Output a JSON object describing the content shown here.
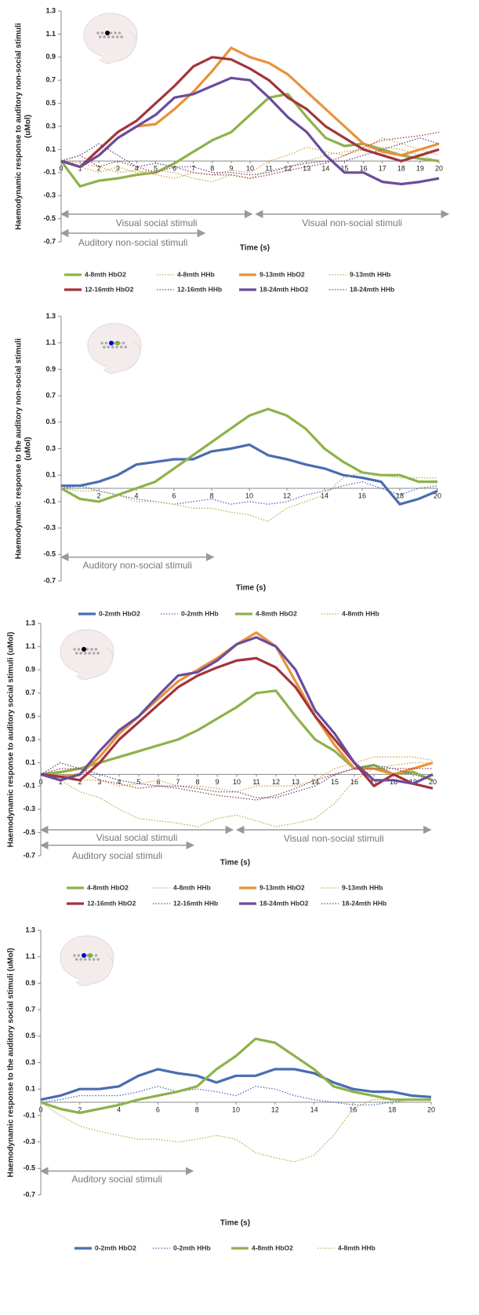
{
  "chart_data": [
    {
      "type": "line",
      "xlabel": "Time (s)",
      "ylabel": [
        "Haemodynamic response to auditory non-social stimuli",
        "(uMol)"
      ],
      "xlim": [
        0,
        20
      ],
      "xticks": [
        0,
        1,
        2,
        3,
        4,
        5,
        6,
        7,
        8,
        9,
        10,
        11,
        12,
        13,
        14,
        15,
        16,
        17,
        18,
        19,
        20
      ],
      "ylim": [
        -0.7,
        1.3
      ],
      "yticks": [
        -0.7,
        -0.5,
        -0.3,
        -0.1,
        0.1,
        0.3,
        0.5,
        0.7,
        0.9,
        1.1,
        1.3
      ],
      "annotations": [
        "Visual social stimuli",
        "Visual non-social stimuli",
        "Auditory non-social stimuli"
      ],
      "x": [
        0,
        1,
        2,
        3,
        4,
        5,
        6,
        7,
        8,
        9,
        10,
        11,
        12,
        13,
        14,
        15,
        16,
        17,
        18,
        19,
        20
      ],
      "series": [
        {
          "name": "4-8mth HbO2",
          "color": "#8db24a",
          "style": "solid",
          "values": [
            0,
            -0.22,
            -0.17,
            -0.15,
            -0.12,
            -0.1,
            -0.02,
            0.08,
            0.18,
            0.25,
            0.4,
            0.55,
            0.58,
            0.38,
            0.2,
            0.13,
            0.15,
            0.1,
            0.05,
            0.02,
            0
          ]
        },
        {
          "name": "4-8mth HHb",
          "color": "#b4b04e",
          "style": "dotted",
          "values": [
            0,
            -0.05,
            -0.1,
            -0.05,
            -0.1,
            -0.08,
            -0.1,
            -0.15,
            -0.18,
            -0.12,
            -0.15,
            -0.08,
            -0.05,
            0,
            0.05,
            0.08,
            0.1,
            0.12,
            0.1,
            0.05,
            0
          ]
        },
        {
          "name": "9-13mth HbO2",
          "color": "#e8923a",
          "style": "solid",
          "values": [
            0,
            -0.05,
            0.05,
            0.2,
            0.3,
            0.32,
            0.45,
            0.6,
            0.78,
            0.98,
            0.9,
            0.85,
            0.75,
            0.6,
            0.45,
            0.3,
            0.15,
            0.08,
            0.05,
            0.1,
            0.15
          ]
        },
        {
          "name": "9-13mth HHb",
          "color": "#d2a04c",
          "style": "dotted",
          "values": [
            0,
            -0.02,
            -0.05,
            -0.1,
            -0.08,
            -0.12,
            -0.15,
            -0.1,
            -0.12,
            -0.08,
            -0.1,
            0,
            0.05,
            0.12,
            0.08,
            0.05,
            0.1,
            0.2,
            0.15,
            0.1,
            0.05
          ]
        },
        {
          "name": "12-16mth HbO2",
          "color": "#a3343c",
          "style": "solid",
          "values": [
            0,
            -0.05,
            0.1,
            0.25,
            0.35,
            0.5,
            0.65,
            0.82,
            0.9,
            0.88,
            0.8,
            0.7,
            0.55,
            0.45,
            0.3,
            0.2,
            0.1,
            0.05,
            0,
            0.05,
            0.1
          ]
        },
        {
          "name": "12-16mth HHb",
          "color": "#9b3a4a",
          "style": "dotted",
          "values": [
            0,
            0.05,
            -0.05,
            0,
            -0.05,
            -0.1,
            -0.05,
            -0.1,
            -0.12,
            -0.12,
            -0.15,
            -0.12,
            -0.08,
            -0.05,
            -0.02,
            0.05,
            0.12,
            0.18,
            0.2,
            0.22,
            0.25
          ]
        },
        {
          "name": "18-24mth HbO2",
          "color": "#6a4c9c",
          "style": "solid",
          "values": [
            0,
            -0.05,
            0.05,
            0.2,
            0.3,
            0.4,
            0.55,
            0.58,
            0.65,
            0.72,
            0.7,
            0.55,
            0.38,
            0.25,
            0.05,
            -0.1,
            -0.1,
            -0.18,
            -0.2,
            -0.18,
            -0.15
          ]
        },
        {
          "name": "18-24mth HHb",
          "color": "#5d4a8c",
          "style": "dotted",
          "values": [
            0,
            0.05,
            0.15,
            0.05,
            -0.05,
            -0.02,
            -0.05,
            -0.05,
            -0.1,
            -0.1,
            -0.12,
            -0.1,
            -0.05,
            -0.02,
            0,
            0,
            0.05,
            0.1,
            0.15,
            0.2,
            0.15
          ]
        }
      ]
    },
    {
      "type": "line",
      "xlabel": "Time (s)",
      "ylabel": [
        "Haemodynamic response to the auditory non-social stimuli",
        "(uMol)"
      ],
      "xlim": [
        0,
        20
      ],
      "xticks": [
        2,
        4,
        6,
        8,
        10,
        12,
        14,
        16,
        18,
        20
      ],
      "ylim": [
        -0.7,
        1.3
      ],
      "yticks": [
        -0.7,
        -0.5,
        -0.3,
        -0.1,
        0.1,
        0.3,
        0.5,
        0.7,
        0.9,
        1.1,
        1.3
      ],
      "annotations": [
        "Auditory non-social stimuli"
      ],
      "x": [
        0,
        1,
        2,
        3,
        4,
        5,
        6,
        7,
        8,
        9,
        10,
        11,
        12,
        13,
        14,
        15,
        16,
        17,
        18,
        19,
        20
      ],
      "series": [
        {
          "name": "0-2mth HbO2",
          "color": "#4a6db0",
          "style": "solid",
          "values": [
            0.02,
            0.02,
            0.05,
            0.1,
            0.18,
            0.2,
            0.22,
            0.22,
            0.28,
            0.3,
            0.33,
            0.25,
            0.22,
            0.18,
            0.15,
            0.1,
            0.08,
            0.05,
            -0.12,
            -0.08,
            -0.02
          ]
        },
        {
          "name": "0-2mth HHb",
          "color": "#4a6db0",
          "style": "dotted",
          "values": [
            0,
            0.02,
            -0.02,
            -0.05,
            -0.08,
            -0.1,
            -0.12,
            -0.1,
            -0.08,
            -0.12,
            -0.1,
            -0.12,
            -0.1,
            -0.05,
            -0.02,
            0.02,
            0.05,
            0,
            -0.05,
            0,
            0.02
          ]
        },
        {
          "name": "4-8mth HbO2",
          "color": "#8db24a",
          "style": "solid",
          "values": [
            0,
            -0.08,
            -0.1,
            -0.05,
            0,
            0.05,
            0.15,
            0.25,
            0.35,
            0.45,
            0.55,
            0.6,
            0.55,
            0.45,
            0.3,
            0.2,
            0.12,
            0.1,
            0.1,
            0.05,
            0.05
          ]
        },
        {
          "name": "4-8mth HHb",
          "color": "#b4b04e",
          "style": "dotted",
          "values": [
            0,
            -0.02,
            -0.02,
            -0.05,
            -0.1,
            -0.1,
            -0.12,
            -0.15,
            -0.15,
            -0.18,
            -0.2,
            -0.25,
            -0.15,
            -0.1,
            -0.05,
            0.08,
            0.12,
            0.1,
            0.08,
            0.08,
            0.08
          ]
        }
      ]
    },
    {
      "type": "line",
      "xlabel": "Time (s)",
      "ylabel": [
        "Haemodynamic response to auditory social stimuli (uMol)"
      ],
      "xlim": [
        0,
        20
      ],
      "xticks": [
        0,
        1,
        2,
        3,
        4,
        5,
        6,
        7,
        8,
        9,
        10,
        11,
        12,
        13,
        14,
        15,
        16,
        17,
        18,
        19,
        20
      ],
      "ylim": [
        -0.7,
        1.3
      ],
      "yticks": [
        -0.7,
        -0.5,
        -0.3,
        -0.1,
        0.1,
        0.3,
        0.5,
        0.7,
        0.9,
        1.1,
        1.3
      ],
      "annotations": [
        "Visual social stimuli",
        "Visual non-social stimuli",
        "Auditory social stimuli"
      ],
      "x": [
        0,
        1,
        2,
        3,
        4,
        5,
        6,
        7,
        8,
        9,
        10,
        11,
        12,
        13,
        14,
        15,
        16,
        17,
        18,
        19,
        20
      ],
      "series": [
        {
          "name": "4-8mth HbO2",
          "color": "#8db24a",
          "style": "solid",
          "values": [
            0,
            0.02,
            0.05,
            0.1,
            0.15,
            0.2,
            0.25,
            0.3,
            0.38,
            0.48,
            0.58,
            0.7,
            0.72,
            0.5,
            0.3,
            0.2,
            0.05,
            0.08,
            0,
            0.02,
            -0.05
          ]
        },
        {
          "name": "4-8mth HHb",
          "color": "#b4b04e",
          "style": "dotted",
          "values": [
            0,
            -0.05,
            -0.15,
            -0.2,
            -0.3,
            -0.38,
            -0.4,
            -0.42,
            -0.45,
            -0.38,
            -0.35,
            -0.4,
            -0.45,
            -0.42,
            -0.38,
            -0.25,
            -0.05,
            0.05,
            0.08,
            0.1,
            0.1
          ]
        },
        {
          "name": "9-13mth HbO2",
          "color": "#e8923a",
          "style": "solid",
          "values": [
            0,
            -0.02,
            0,
            0.15,
            0.35,
            0.5,
            0.65,
            0.8,
            0.9,
            1,
            1.12,
            1.22,
            1.1,
            0.8,
            0.5,
            0.25,
            0.05,
            0.05,
            0,
            0.05,
            0.1
          ]
        },
        {
          "name": "9-13mth HHb",
          "color": "#d2a04c",
          "style": "dotted",
          "values": [
            0,
            0,
            -0.05,
            -0.05,
            -0.1,
            -0.08,
            -0.05,
            -0.1,
            -0.1,
            -0.12,
            -0.15,
            -0.1,
            -0.1,
            -0.1,
            -0.05,
            0.05,
            0.1,
            0.15,
            0.15,
            0.15,
            0.12
          ]
        },
        {
          "name": "12-16mth HbO2",
          "color": "#a3343c",
          "style": "solid",
          "values": [
            0,
            -0.02,
            -0.05,
            0.1,
            0.3,
            0.45,
            0.6,
            0.75,
            0.85,
            0.92,
            0.98,
            1,
            0.92,
            0.75,
            0.5,
            0.3,
            0.1,
            -0.1,
            0,
            -0.08,
            -0.12
          ]
        },
        {
          "name": "12-16mth HHb",
          "color": "#9b3a4a",
          "style": "dotted",
          "values": [
            0,
            0.05,
            0.05,
            -0.05,
            -0.08,
            -0.12,
            -0.1,
            -0.12,
            -0.15,
            -0.18,
            -0.2,
            -0.22,
            -0.18,
            -0.12,
            -0.05,
            0,
            0.05,
            0.05,
            0.05,
            0.05,
            0.05
          ]
        },
        {
          "name": "18-24mth HbO2",
          "color": "#6a4c9c",
          "style": "solid",
          "values": [
            0,
            -0.05,
            0,
            0.2,
            0.38,
            0.5,
            0.68,
            0.85,
            0.88,
            0.98,
            1.12,
            1.18,
            1.1,
            0.9,
            0.55,
            0.35,
            0.1,
            -0.05,
            -0.05,
            -0.08,
            0
          ]
        },
        {
          "name": "18-24mth HHb",
          "color": "#5d4a8c",
          "style": "dotted",
          "values": [
            0,
            0.1,
            0.05,
            0,
            -0.05,
            -0.08,
            -0.1,
            -0.1,
            -0.12,
            -0.15,
            -0.15,
            -0.2,
            -0.2,
            -0.15,
            -0.1,
            0,
            0.05,
            0.08,
            0.05,
            0,
            -0.05
          ]
        }
      ]
    },
    {
      "type": "line",
      "xlabel": "Time (s)",
      "ylabel": [
        "Haemodynamic response to the auditory social stimuli (uMol)"
      ],
      "xlim": [
        0,
        20
      ],
      "xticks": [
        0,
        2,
        4,
        6,
        8,
        10,
        12,
        14,
        16,
        18,
        20
      ],
      "ylim": [
        -0.7,
        1.3
      ],
      "yticks": [
        -0.7,
        -0.5,
        -0.3,
        -0.1,
        0.1,
        0.3,
        0.5,
        0.7,
        0.9,
        1.1,
        1.3
      ],
      "annotations": [
        "Auditory social stimuli"
      ],
      "x": [
        0,
        1,
        2,
        3,
        4,
        5,
        6,
        7,
        8,
        9,
        10,
        11,
        12,
        13,
        14,
        15,
        16,
        17,
        18,
        19,
        20
      ],
      "series": [
        {
          "name": "0-2mth HbO2",
          "color": "#4a6db0",
          "style": "solid",
          "values": [
            0.02,
            0.05,
            0.1,
            0.1,
            0.12,
            0.2,
            0.25,
            0.22,
            0.2,
            0.15,
            0.2,
            0.2,
            0.25,
            0.25,
            0.22,
            0.15,
            0.1,
            0.08,
            0.08,
            0.05,
            0.04
          ]
        },
        {
          "name": "0-2mth HHb",
          "color": "#4a6db0",
          "style": "dotted",
          "values": [
            0,
            0.02,
            0.05,
            0.05,
            0.05,
            0.08,
            0.12,
            0.08,
            0.1,
            0.08,
            0.05,
            0.12,
            0.1,
            0.05,
            0.02,
            0,
            -0.02,
            -0.02,
            0,
            0.02,
            0.02
          ]
        },
        {
          "name": "4-8mth HbO2",
          "color": "#8db24a",
          "style": "solid",
          "values": [
            0,
            -0.05,
            -0.08,
            -0.05,
            -0.02,
            0.02,
            0.05,
            0.08,
            0.12,
            0.25,
            0.35,
            0.48,
            0.45,
            0.35,
            0.25,
            0.12,
            0.08,
            0.05,
            0.02,
            0.02,
            0.02
          ]
        },
        {
          "name": "4-8mth HHb",
          "color": "#b4b04e",
          "style": "dotted",
          "values": [
            0,
            -0.1,
            -0.18,
            -0.22,
            -0.25,
            -0.28,
            -0.28,
            -0.3,
            -0.28,
            -0.25,
            -0.28,
            -0.38,
            -0.42,
            -0.45,
            -0.4,
            -0.25,
            -0.05,
            0.02,
            0.02,
            0.02,
            0.02
          ]
        }
      ]
    }
  ]
}
